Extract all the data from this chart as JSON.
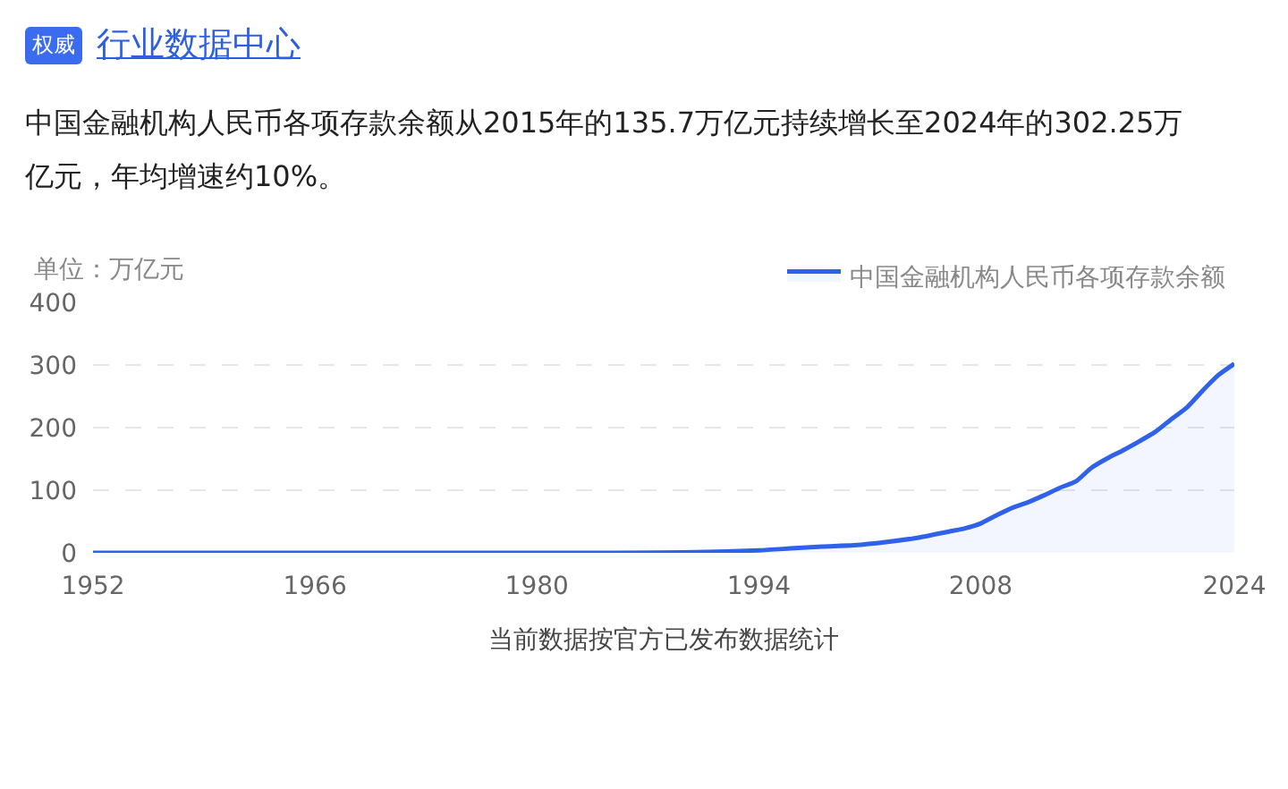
{
  "chart_data": {
    "type": "area",
    "title": "行业数据中心",
    "subtitle": "中国金融机构人民币各项存款余额从2015年的135.7万亿元持续增长至2024年的302.25万亿元，年均增速约10%。",
    "ylabel": "单位：万亿元",
    "annotations": [
      "权威",
      "当前数据按官方已发布数据统计"
    ],
    "x": [
      1952,
      1960,
      1970,
      1978,
      1985,
      1990,
      1994,
      1996,
      1998,
      2000,
      2002,
      2004,
      2006,
      2007,
      2008,
      2009,
      2010,
      2011,
      2012,
      2013,
      2014,
      2015,
      2016,
      2017,
      2018,
      2019,
      2020,
      2021,
      2022,
      2023,
      2024
    ],
    "series": [
      {
        "name": "中国金融机构人民币各项存款余额",
        "color": "#2f62e8",
        "values": [
          0,
          0,
          0,
          0,
          0,
          1,
          4,
          7,
          10,
          12,
          17,
          24,
          34,
          39,
          47,
          60,
          72,
          81,
          92,
          104,
          114,
          136,
          151,
          164,
          178,
          193,
          213,
          232,
          259,
          284,
          302
        ]
      }
    ],
    "xlim": [
      1952,
      2024
    ],
    "xticks": [
      1952,
      1966,
      1980,
      1994,
      2008,
      2024
    ],
    "ylim": [
      0,
      400
    ],
    "yticks": [
      0,
      100,
      200,
      300,
      400
    ],
    "grid": "y",
    "legend": "top right",
    "marker": "none",
    "line_style": "solid"
  }
}
